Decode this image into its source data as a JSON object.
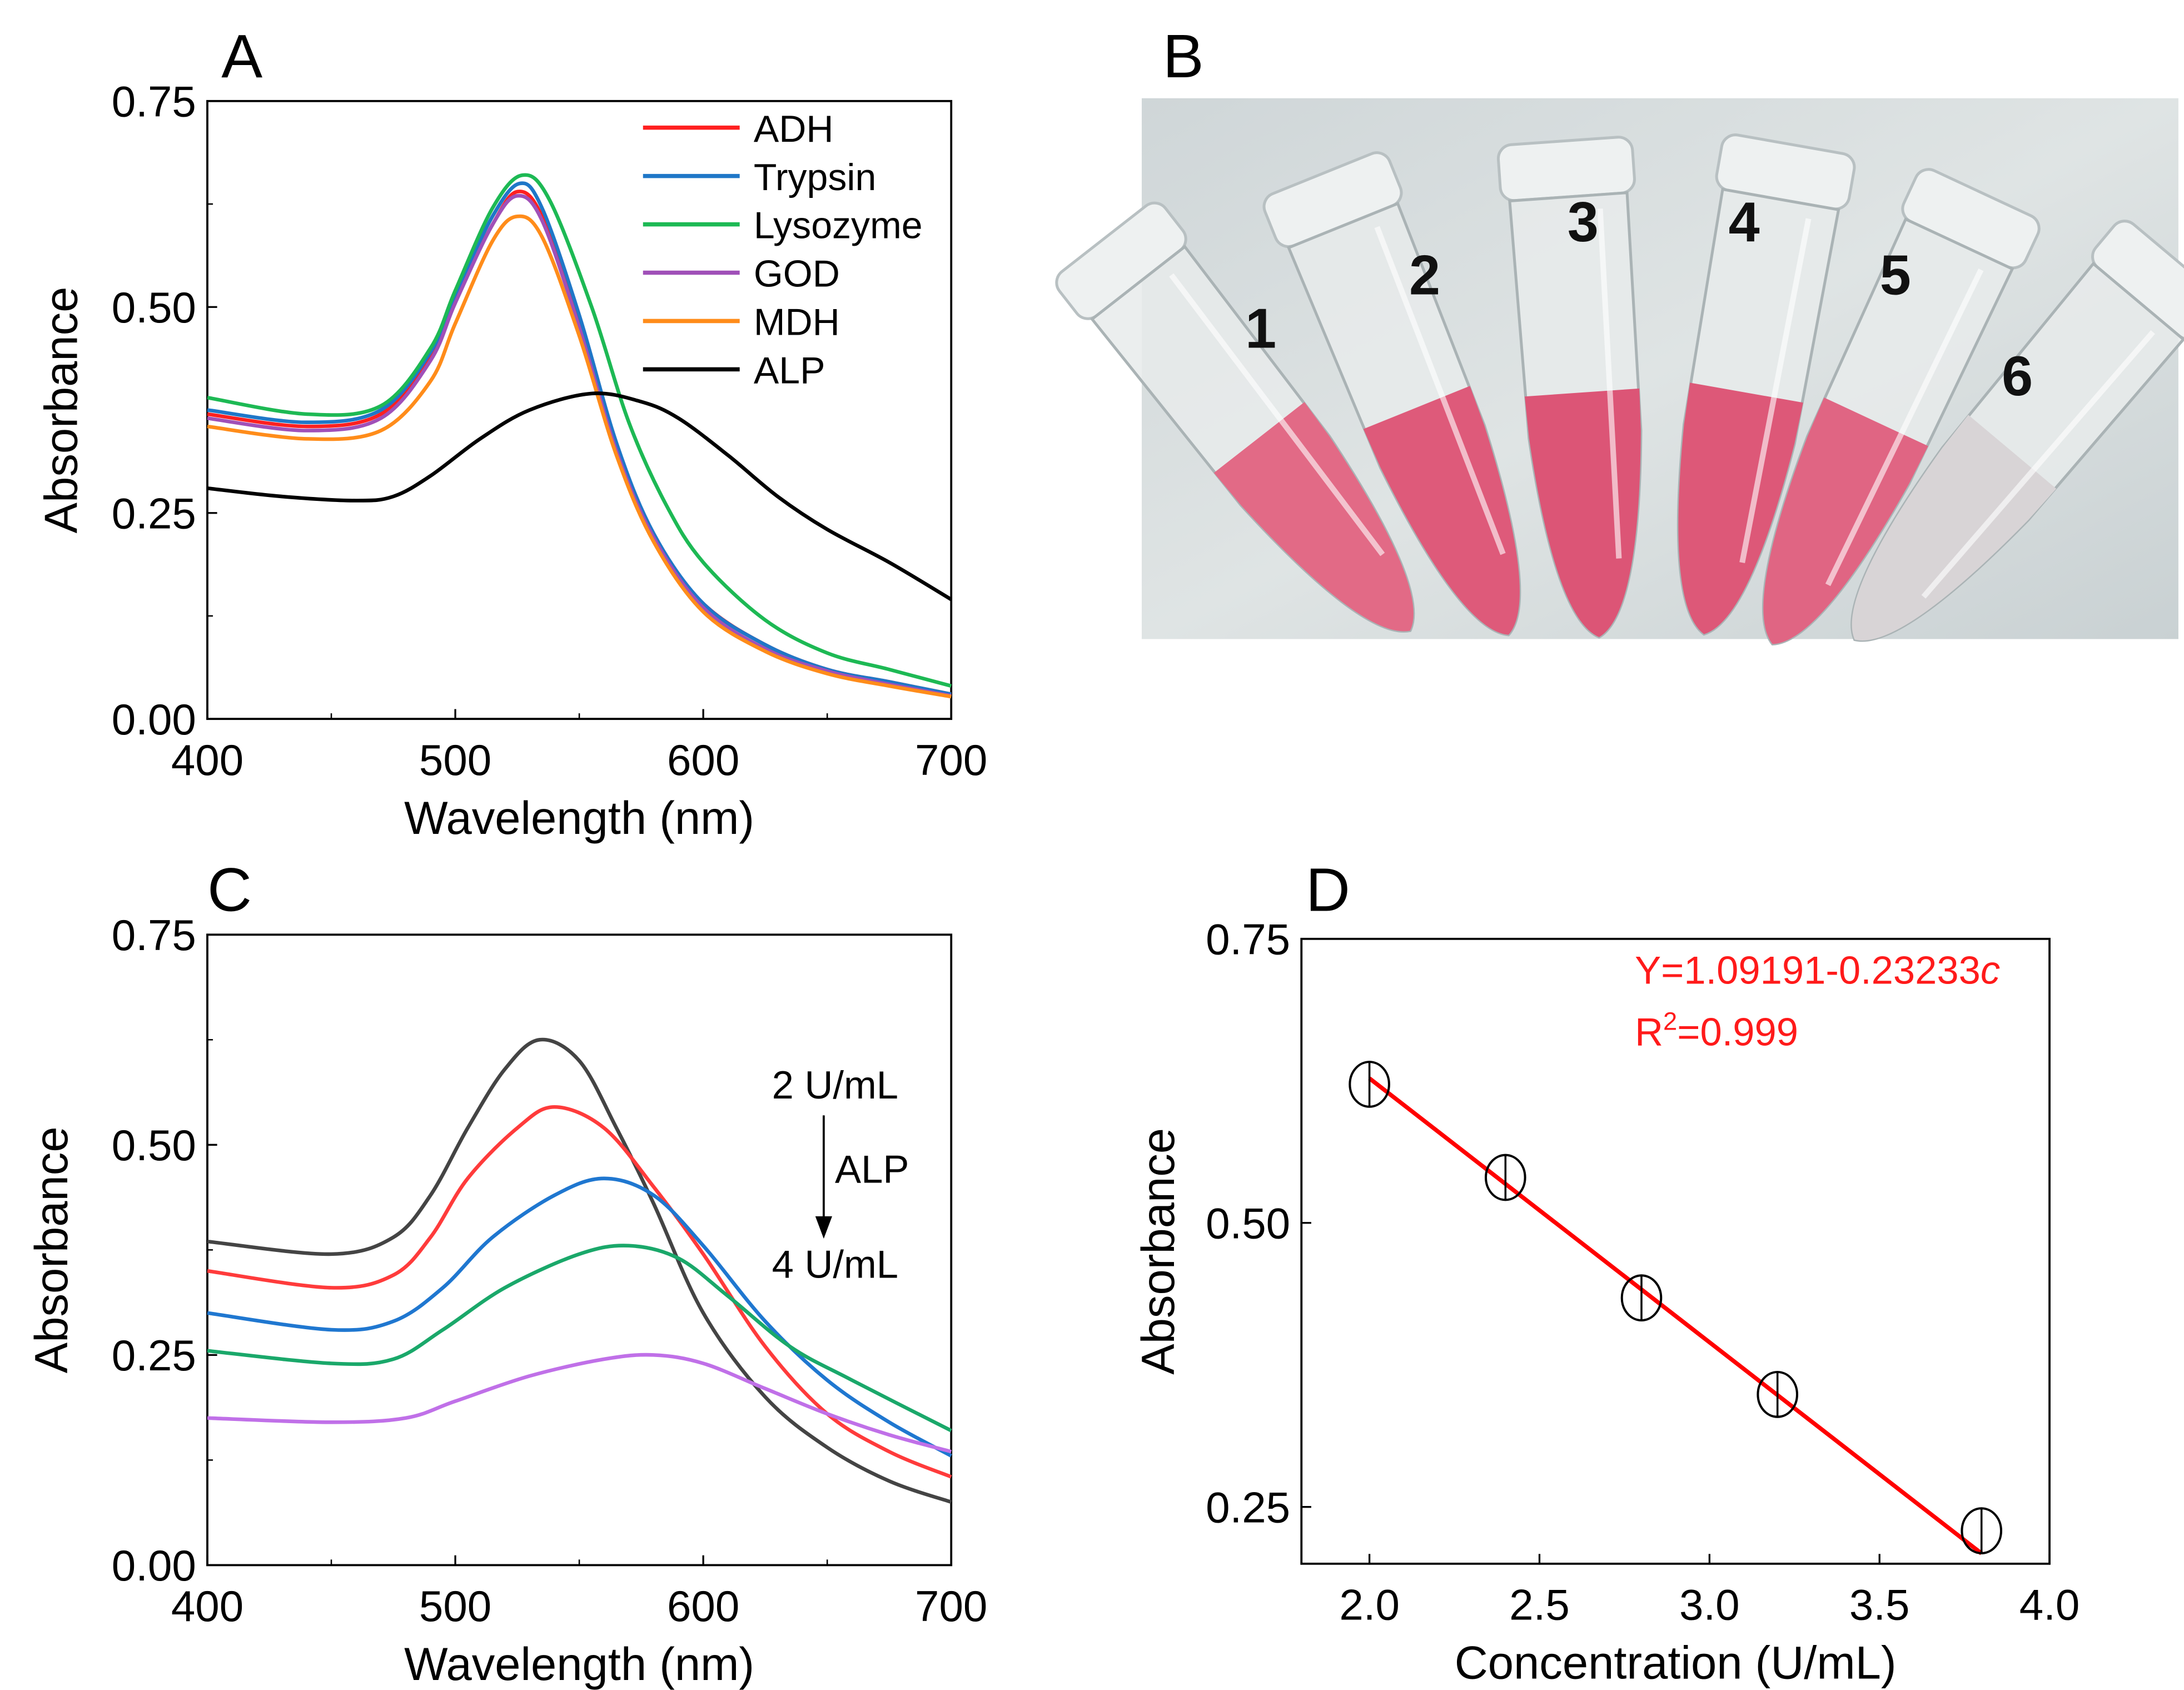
{
  "chart_data": [
    {
      "panel": "A",
      "type": "line",
      "xlabel": "Wavelength (nm)",
      "ylabel": "Absorbance",
      "xlim": [
        400,
        700
      ],
      "ylim": [
        0,
        0.75
      ],
      "xticks": [
        "400",
        "500",
        "600",
        "700"
      ],
      "yticks": [
        "0.00",
        "0.25",
        "0.50",
        "0.75"
      ],
      "legend_placement": "top-right",
      "series": [
        {
          "name": "ADH",
          "color": "#ff2020",
          "x": [
            400,
            440,
            470,
            490,
            500,
            515,
            525,
            535,
            550,
            565,
            580,
            600,
            625,
            650,
            675,
            700
          ],
          "y": [
            0.37,
            0.355,
            0.37,
            0.44,
            0.51,
            0.6,
            0.64,
            0.61,
            0.48,
            0.33,
            0.22,
            0.14,
            0.09,
            0.06,
            0.045,
            0.03
          ]
        },
        {
          "name": "Trypsin",
          "color": "#1f77c8",
          "x": [
            400,
            440,
            470,
            490,
            500,
            515,
            526,
            535,
            550,
            565,
            580,
            600,
            625,
            650,
            675,
            700
          ],
          "y": [
            0.375,
            0.36,
            0.375,
            0.445,
            0.515,
            0.61,
            0.65,
            0.62,
            0.49,
            0.335,
            0.225,
            0.14,
            0.09,
            0.06,
            0.045,
            0.03
          ]
        },
        {
          "name": "Lysozyme",
          "color": "#1db954",
          "x": [
            400,
            440,
            470,
            490,
            500,
            515,
            527,
            538,
            555,
            570,
            585,
            600,
            625,
            650,
            675,
            700
          ],
          "y": [
            0.39,
            0.37,
            0.38,
            0.45,
            0.52,
            0.62,
            0.66,
            0.63,
            0.5,
            0.36,
            0.26,
            0.19,
            0.12,
            0.08,
            0.06,
            0.04
          ]
        },
        {
          "name": "GOD",
          "color": "#a050b8",
          "x": [
            400,
            440,
            470,
            490,
            500,
            515,
            525,
            535,
            550,
            565,
            580,
            600,
            625,
            650,
            675,
            700
          ],
          "y": [
            0.365,
            0.35,
            0.365,
            0.435,
            0.505,
            0.6,
            0.635,
            0.605,
            0.475,
            0.325,
            0.22,
            0.135,
            0.085,
            0.058,
            0.042,
            0.028
          ]
        },
        {
          "name": "MDH",
          "color": "#ff8c1a",
          "x": [
            400,
            440,
            470,
            490,
            500,
            515,
            525,
            535,
            550,
            565,
            580,
            600,
            625,
            650,
            675,
            700
          ],
          "y": [
            0.355,
            0.34,
            0.35,
            0.41,
            0.48,
            0.58,
            0.61,
            0.585,
            0.465,
            0.32,
            0.215,
            0.13,
            0.082,
            0.055,
            0.04,
            0.027
          ]
        },
        {
          "name": "ALP",
          "color": "#000000",
          "x": [
            400,
            430,
            460,
            475,
            490,
            510,
            530,
            555,
            575,
            590,
            610,
            630,
            650,
            675,
            700
          ],
          "y": [
            0.28,
            0.27,
            0.265,
            0.27,
            0.295,
            0.34,
            0.375,
            0.395,
            0.385,
            0.365,
            0.32,
            0.27,
            0.23,
            0.19,
            0.145
          ]
        }
      ]
    },
    {
      "panel": "C",
      "type": "line",
      "xlabel": "Wavelength (nm)",
      "ylabel": "Absorbance",
      "xlim": [
        400,
        700
      ],
      "ylim": [
        0,
        0.75
      ],
      "xticks": [
        "400",
        "500",
        "600",
        "700"
      ],
      "yticks": [
        "0.00",
        "0.25",
        "0.50",
        "0.75"
      ],
      "annotations": {
        "top": "2 U/mL",
        "middle": "ALP",
        "bottom": "4 U/mL"
      },
      "series": [
        {
          "color": "#444444",
          "x": [
            400,
            450,
            475,
            490,
            505,
            520,
            534,
            550,
            565,
            580,
            600,
            625,
            650,
            675,
            700
          ],
          "y": [
            0.385,
            0.37,
            0.39,
            0.44,
            0.52,
            0.59,
            0.625,
            0.6,
            0.52,
            0.43,
            0.3,
            0.2,
            0.14,
            0.1,
            0.075
          ]
        },
        {
          "color": "#ff3b3b",
          "x": [
            400,
            450,
            475,
            490,
            505,
            525,
            540,
            560,
            580,
            600,
            625,
            650,
            675,
            700
          ],
          "y": [
            0.35,
            0.33,
            0.345,
            0.39,
            0.46,
            0.52,
            0.545,
            0.52,
            0.45,
            0.37,
            0.26,
            0.18,
            0.135,
            0.105
          ]
        },
        {
          "color": "#1f77d0",
          "x": [
            400,
            450,
            475,
            495,
            515,
            540,
            560,
            580,
            600,
            625,
            650,
            675,
            700
          ],
          "y": [
            0.3,
            0.28,
            0.29,
            0.33,
            0.39,
            0.44,
            0.46,
            0.44,
            0.38,
            0.29,
            0.22,
            0.17,
            0.13
          ]
        },
        {
          "color": "#1aa86a",
          "x": [
            400,
            450,
            475,
            495,
            520,
            550,
            570,
            590,
            610,
            635,
            660,
            700
          ],
          "y": [
            0.255,
            0.24,
            0.245,
            0.28,
            0.33,
            0.37,
            0.38,
            0.365,
            0.32,
            0.26,
            0.22,
            0.16
          ]
        },
        {
          "color": "#c070e8",
          "x": [
            400,
            450,
            480,
            500,
            530,
            560,
            580,
            600,
            625,
            650,
            675,
            700
          ],
          "y": [
            0.175,
            0.17,
            0.175,
            0.195,
            0.225,
            0.245,
            0.25,
            0.24,
            0.21,
            0.18,
            0.155,
            0.135
          ]
        }
      ]
    },
    {
      "panel": "D",
      "type": "scatter",
      "xlabel": "Concentration (U/mL)",
      "ylabel": "Absorbance",
      "xlim": [
        1.8,
        4.0
      ],
      "ylim": [
        0.2,
        0.75
      ],
      "xticks": [
        "2.0",
        "2.5",
        "3.0",
        "3.5",
        "4.0"
      ],
      "yticks": [
        "0.25",
        "0.50",
        "0.75"
      ],
      "x": [
        2.0,
        2.4,
        2.8,
        3.2,
        3.8
      ],
      "y": [
        0.622,
        0.54,
        0.434,
        0.349,
        0.229
      ],
      "fit": {
        "intercept": 1.09191,
        "slope": -0.23233,
        "color": "#ff0000"
      },
      "equation_text": "Y=1.09191-0.23233",
      "equation_var": "c",
      "r2_prefix": "R",
      "r2_sup": "2",
      "r2_value": "=0.999"
    }
  ],
  "panel_b": {
    "label": "B",
    "tubes": [
      {
        "number": "1",
        "liquid": "#e26a86"
      },
      {
        "number": "2",
        "liquid": "#de5a7a"
      },
      {
        "number": "3",
        "liquid": "#dc5576"
      },
      {
        "number": "4",
        "liquid": "#dd5878"
      },
      {
        "number": "5",
        "liquid": "#e06583"
      },
      {
        "number": "6",
        "liquid": "#d8d4d6"
      }
    ]
  }
}
